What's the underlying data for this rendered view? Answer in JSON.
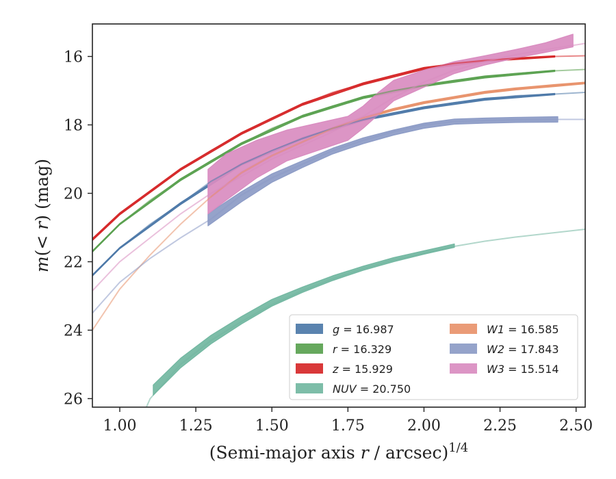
{
  "chart_data": {
    "type": "line",
    "xlabel": "(Semi-major axis r / arcsec)^{1/4}",
    "ylabel": "m(< r) (mag)",
    "xlim": [
      0.91,
      2.53
    ],
    "ylim": [
      26.25,
      15.05
    ],
    "y_inverted": true,
    "xticks": [
      "1.00",
      "1.25",
      "1.50",
      "1.75",
      "2.00",
      "2.25",
      "2.50"
    ],
    "yticks": [
      "16",
      "18",
      "20",
      "22",
      "24",
      "26"
    ],
    "grid": false,
    "legend_position": "lower-right",
    "series": [
      {
        "name": "g = 16.987",
        "color": "#4c78a8",
        "fit": [
          [
            0.91,
            22.4
          ],
          [
            1.0,
            21.6
          ],
          [
            1.1,
            20.9
          ],
          [
            1.2,
            20.3
          ],
          [
            1.3,
            19.65
          ],
          [
            1.4,
            19.15
          ],
          [
            1.5,
            18.75
          ],
          [
            1.6,
            18.4
          ],
          [
            1.7,
            18.1
          ],
          [
            1.8,
            17.85
          ],
          [
            1.9,
            17.65
          ],
          [
            2.0,
            17.5
          ],
          [
            2.1,
            17.35
          ],
          [
            2.2,
            17.25
          ],
          [
            2.3,
            17.15
          ],
          [
            2.43,
            17.1
          ],
          [
            2.53,
            17.05
          ]
        ],
        "band": [
          [
            0.91,
            22.42,
            22.38
          ],
          [
            1.0,
            21.62,
            21.58
          ],
          [
            1.2,
            20.33,
            20.27
          ],
          [
            1.4,
            19.18,
            19.12
          ],
          [
            1.6,
            18.43,
            18.37
          ],
          [
            1.8,
            17.88,
            17.82
          ],
          [
            2.0,
            17.53,
            17.47
          ],
          [
            2.2,
            17.28,
            17.22
          ],
          [
            2.43,
            17.12,
            17.08
          ]
        ]
      },
      {
        "name": "r = 16.329",
        "color": "#59a14f",
        "fit": [
          [
            0.91,
            21.7
          ],
          [
            1.0,
            20.9
          ],
          [
            1.1,
            20.2
          ],
          [
            1.2,
            19.6
          ],
          [
            1.3,
            19.05
          ],
          [
            1.4,
            18.55
          ],
          [
            1.5,
            18.1
          ],
          [
            1.6,
            17.75
          ],
          [
            1.7,
            17.45
          ],
          [
            1.8,
            17.2
          ],
          [
            1.9,
            17.0
          ],
          [
            2.0,
            16.85
          ],
          [
            2.1,
            16.7
          ],
          [
            2.2,
            16.6
          ],
          [
            2.3,
            16.5
          ],
          [
            2.43,
            16.42
          ],
          [
            2.53,
            16.38
          ]
        ],
        "band": [
          [
            0.91,
            21.72,
            21.68
          ],
          [
            1.0,
            20.92,
            20.88
          ],
          [
            1.2,
            19.63,
            19.57
          ],
          [
            1.4,
            18.58,
            18.52
          ],
          [
            1.6,
            17.78,
            17.72
          ],
          [
            1.8,
            17.23,
            17.17
          ],
          [
            2.0,
            16.88,
            16.82
          ],
          [
            2.2,
            16.63,
            16.57
          ],
          [
            2.43,
            16.44,
            16.4
          ]
        ]
      },
      {
        "name": "z = 15.929",
        "color": "#d62728",
        "fit": [
          [
            0.91,
            21.35
          ],
          [
            1.0,
            20.6
          ],
          [
            1.1,
            19.95
          ],
          [
            1.2,
            19.3
          ],
          [
            1.3,
            18.75
          ],
          [
            1.4,
            18.25
          ],
          [
            1.5,
            17.8
          ],
          [
            1.6,
            17.4
          ],
          [
            1.7,
            17.05
          ],
          [
            1.8,
            16.8
          ],
          [
            1.9,
            16.55
          ],
          [
            2.0,
            16.35
          ],
          [
            2.1,
            16.2
          ],
          [
            2.2,
            16.12
          ],
          [
            2.3,
            16.05
          ],
          [
            2.43,
            16.0
          ],
          [
            2.53,
            15.98
          ]
        ],
        "band": [
          [
            0.91,
            21.38,
            21.32
          ],
          [
            1.0,
            20.63,
            20.57
          ],
          [
            1.2,
            19.33,
            19.27
          ],
          [
            1.4,
            18.28,
            18.22
          ],
          [
            1.6,
            17.43,
            17.37
          ],
          [
            1.8,
            16.83,
            16.77
          ],
          [
            2.0,
            16.38,
            16.32
          ],
          [
            2.2,
            16.15,
            16.09
          ],
          [
            2.43,
            16.02,
            15.98
          ]
        ]
      },
      {
        "name": "NUV = 20.750",
        "color": "#72b7a1",
        "fit": [
          [
            1.05,
            27.0
          ],
          [
            1.1,
            26.0
          ],
          [
            1.2,
            25.0
          ],
          [
            1.3,
            24.3
          ],
          [
            1.4,
            23.75
          ],
          [
            1.5,
            23.25
          ],
          [
            1.6,
            22.85
          ],
          [
            1.7,
            22.5
          ],
          [
            1.8,
            22.2
          ],
          [
            1.9,
            21.95
          ],
          [
            2.0,
            21.75
          ],
          [
            2.1,
            21.55
          ],
          [
            2.2,
            21.4
          ],
          [
            2.3,
            21.28
          ],
          [
            2.4,
            21.18
          ],
          [
            2.53,
            21.05
          ]
        ],
        "band": [
          [
            1.11,
            25.9,
            25.6
          ],
          [
            1.2,
            25.1,
            24.82
          ],
          [
            1.3,
            24.4,
            24.15
          ],
          [
            1.4,
            23.82,
            23.6
          ],
          [
            1.5,
            23.3,
            23.1
          ],
          [
            1.6,
            22.9,
            22.74
          ],
          [
            1.7,
            22.55,
            22.41
          ],
          [
            1.8,
            22.25,
            22.13
          ],
          [
            1.9,
            22.0,
            21.88
          ],
          [
            2.0,
            21.78,
            21.68
          ],
          [
            2.1,
            21.58,
            21.48
          ]
        ]
      },
      {
        "name": "W1 = 16.585",
        "color": "#e8926b",
        "fit": [
          [
            0.91,
            24.0
          ],
          [
            1.0,
            22.8
          ],
          [
            1.1,
            21.8
          ],
          [
            1.2,
            20.9
          ],
          [
            1.3,
            20.1
          ],
          [
            1.4,
            19.4
          ],
          [
            1.5,
            18.9
          ],
          [
            1.6,
            18.5
          ],
          [
            1.7,
            18.1
          ],
          [
            1.8,
            17.8
          ],
          [
            1.9,
            17.55
          ],
          [
            2.0,
            17.35
          ],
          [
            2.1,
            17.2
          ],
          [
            2.2,
            17.05
          ],
          [
            2.3,
            16.95
          ],
          [
            2.43,
            16.85
          ],
          [
            2.53,
            16.78
          ]
        ],
        "band": [
          [
            1.3,
            20.12,
            20.08
          ],
          [
            1.4,
            19.43,
            19.37
          ],
          [
            1.5,
            18.93,
            18.87
          ],
          [
            1.6,
            18.53,
            18.47
          ],
          [
            1.7,
            18.13,
            18.07
          ],
          [
            1.8,
            17.83,
            17.77
          ],
          [
            1.9,
            17.58,
            17.52
          ],
          [
            2.0,
            17.38,
            17.32
          ],
          [
            2.1,
            17.23,
            17.17
          ],
          [
            2.2,
            17.08,
            17.02
          ],
          [
            2.3,
            16.98,
            16.92
          ],
          [
            2.43,
            16.88,
            16.82
          ],
          [
            2.53,
            16.8,
            16.75
          ]
        ]
      },
      {
        "name": "W2 = 17.843",
        "color": "#8c9bc6",
        "fit": [
          [
            0.91,
            23.5
          ],
          [
            1.0,
            22.6
          ],
          [
            1.1,
            21.9
          ],
          [
            1.2,
            21.3
          ],
          [
            1.3,
            20.75
          ],
          [
            1.4,
            20.05
          ],
          [
            1.5,
            19.55
          ],
          [
            1.6,
            19.15
          ],
          [
            1.7,
            18.75
          ],
          [
            1.8,
            18.45
          ],
          [
            1.9,
            18.2
          ],
          [
            2.0,
            18.0
          ],
          [
            2.1,
            17.9
          ],
          [
            2.2,
            17.87
          ],
          [
            2.3,
            17.85
          ],
          [
            2.45,
            17.84
          ],
          [
            2.53,
            17.84
          ]
        ],
        "band": [
          [
            1.29,
            20.95,
            20.6
          ],
          [
            1.4,
            20.25,
            19.95
          ],
          [
            1.5,
            19.68,
            19.43
          ],
          [
            1.6,
            19.25,
            19.05
          ],
          [
            1.7,
            18.85,
            18.68
          ],
          [
            1.8,
            18.55,
            18.38
          ],
          [
            1.9,
            18.3,
            18.15
          ],
          [
            2.0,
            18.1,
            17.95
          ],
          [
            2.1,
            17.98,
            17.83
          ],
          [
            2.2,
            17.95,
            17.8
          ],
          [
            2.3,
            17.93,
            17.78
          ],
          [
            2.44,
            17.92,
            17.76
          ]
        ]
      },
      {
        "name": "W3 = 15.514",
        "color": "#d98cc0",
        "fit": [
          [
            0.91,
            22.85
          ],
          [
            1.0,
            22.0
          ],
          [
            1.1,
            21.3
          ],
          [
            1.2,
            20.6
          ],
          [
            1.3,
            20.0
          ],
          [
            1.4,
            19.5
          ],
          [
            1.5,
            19.0
          ],
          [
            1.6,
            18.6
          ],
          [
            1.7,
            18.2
          ],
          [
            1.8,
            17.75
          ],
          [
            1.9,
            17.2
          ],
          [
            2.0,
            16.75
          ],
          [
            2.1,
            16.4
          ],
          [
            2.2,
            16.15
          ],
          [
            2.3,
            15.95
          ],
          [
            2.4,
            15.8
          ],
          [
            2.53,
            15.62
          ]
        ],
        "band": [
          [
            1.29,
            20.6,
            19.3
          ],
          [
            1.35,
            20.2,
            18.85
          ],
          [
            1.45,
            19.55,
            18.45
          ],
          [
            1.55,
            19.05,
            18.15
          ],
          [
            1.65,
            18.75,
            17.95
          ],
          [
            1.75,
            18.45,
            17.75
          ],
          [
            1.8,
            18.1,
            17.45
          ],
          [
            1.85,
            17.7,
            17.05
          ],
          [
            1.9,
            17.3,
            16.7
          ],
          [
            2.0,
            16.9,
            16.4
          ],
          [
            2.1,
            16.5,
            16.15
          ],
          [
            2.2,
            16.25,
            15.98
          ],
          [
            2.3,
            16.05,
            15.8
          ],
          [
            2.4,
            15.88,
            15.6
          ],
          [
            2.49,
            15.72,
            15.35
          ]
        ]
      }
    ],
    "legend_columns": [
      [
        "g = 16.987",
        "r = 16.329",
        "z = 15.929",
        "NUV = 20.750"
      ],
      [
        "W1 = 16.585",
        "W2 = 17.843",
        "W3 = 15.514"
      ]
    ]
  }
}
